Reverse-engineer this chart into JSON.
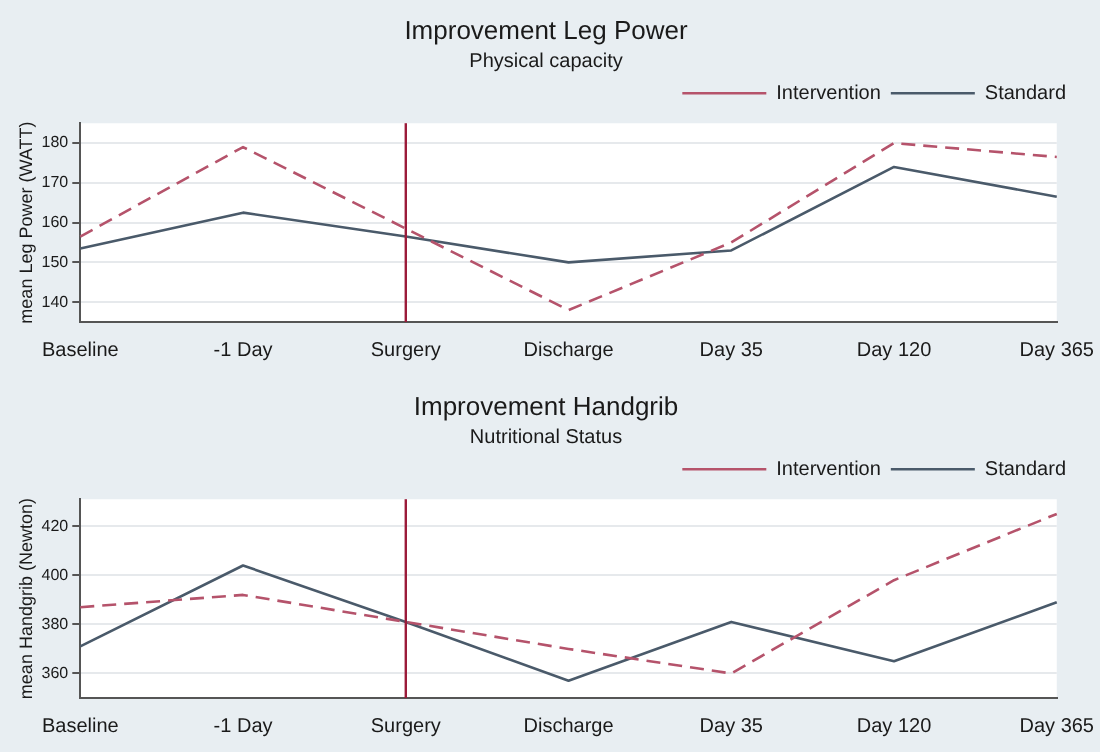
{
  "chart_data": [
    {
      "type": "line",
      "title": "Improvement Leg Power",
      "subtitle": "Physical capacity",
      "ylabel": "mean Leg Power (WATT)",
      "categories": [
        "Baseline",
        "-1 Day",
        "Surgery",
        "Discharge",
        "Day 35",
        "Day 120",
        "Day 365"
      ],
      "series": [
        {
          "name": "Intervention",
          "color": "#b5536b",
          "line_style": "dashed",
          "values": [
            156.5,
            179,
            158.5,
            138,
            155,
            180,
            176.5
          ]
        },
        {
          "name": "Standard",
          "color": "#4a5a6a",
          "line_style": "solid",
          "values": [
            153.5,
            162.5,
            156.5,
            150,
            153,
            174,
            166.5
          ]
        }
      ],
      "ylim": [
        135,
        185
      ],
      "yticks": [
        140,
        150,
        160,
        170,
        180
      ],
      "grid": "y",
      "legend": "top right",
      "marker": "none",
      "ref_lines": [
        {
          "axis": "x",
          "value": "Surgery",
          "color": "#9b1b3a"
        }
      ]
    },
    {
      "type": "line",
      "title": "Improvement Handgrib",
      "subtitle": "Nutritional Status",
      "ylabel": "mean Handgrib (Newton)",
      "categories": [
        "Baseline",
        "-1 Day",
        "Surgery",
        "Discharge",
        "Day 35",
        "Day 120",
        "Day 365"
      ],
      "series": [
        {
          "name": "Intervention",
          "color": "#b5536b",
          "line_style": "dashed",
          "values": [
            387,
            392,
            381,
            370,
            360,
            398,
            425
          ]
        },
        {
          "name": "Standard",
          "color": "#4a5a6a",
          "line_style": "solid",
          "values": [
            371,
            404,
            381,
            357,
            381,
            365,
            389
          ]
        }
      ],
      "ylim": [
        350,
        431
      ],
      "yticks": [
        360,
        380,
        400,
        420
      ],
      "grid": "y",
      "legend": "top right",
      "marker": "none",
      "ref_lines": [
        {
          "axis": "x",
          "value": "Surgery",
          "color": "#9b1b3a"
        }
      ]
    }
  ]
}
